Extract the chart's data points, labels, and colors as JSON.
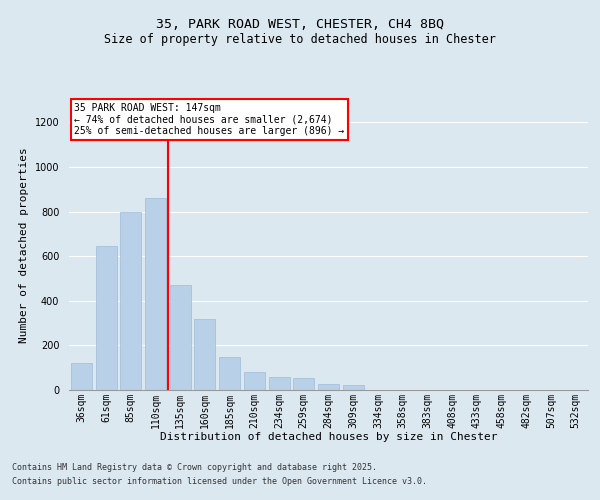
{
  "title_line1": "35, PARK ROAD WEST, CHESTER, CH4 8BQ",
  "title_line2": "Size of property relative to detached houses in Chester",
  "xlabel": "Distribution of detached houses by size in Chester",
  "ylabel": "Number of detached properties",
  "categories": [
    "36sqm",
    "61sqm",
    "85sqm",
    "110sqm",
    "135sqm",
    "160sqm",
    "185sqm",
    "210sqm",
    "234sqm",
    "259sqm",
    "284sqm",
    "309sqm",
    "334sqm",
    "358sqm",
    "383sqm",
    "408sqm",
    "433sqm",
    "458sqm",
    "482sqm",
    "507sqm",
    "532sqm"
  ],
  "values": [
    120,
    645,
    800,
    860,
    470,
    320,
    150,
    80,
    60,
    55,
    25,
    22,
    0,
    0,
    0,
    0,
    0,
    0,
    0,
    0,
    0
  ],
  "bar_color": "#b8d0e8",
  "bar_edge_color": "#a0bcd8",
  "annotation_text": "35 PARK ROAD WEST: 147sqm\n← 74% of detached houses are smaller (2,674)\n25% of semi-detached houses are larger (896) →",
  "annotation_box_color": "white",
  "annotation_box_edge_color": "red",
  "vline_color": "red",
  "vline_x": 3.5,
  "ylim": [
    0,
    1300
  ],
  "yticks": [
    0,
    200,
    400,
    600,
    800,
    1000,
    1200
  ],
  "background_color": "#dce8f0",
  "plot_bg_color": "#dce8f0",
  "fig_bg_color": "#dce8f0",
  "footer_line1": "Contains HM Land Registry data © Crown copyright and database right 2025.",
  "footer_line2": "Contains public sector information licensed under the Open Government Licence v3.0.",
  "title_fontsize": 9.5,
  "subtitle_fontsize": 8.5,
  "ylabel_fontsize": 8,
  "xlabel_fontsize": 8,
  "tick_fontsize": 7,
  "annot_fontsize": 7,
  "footer_fontsize": 6
}
